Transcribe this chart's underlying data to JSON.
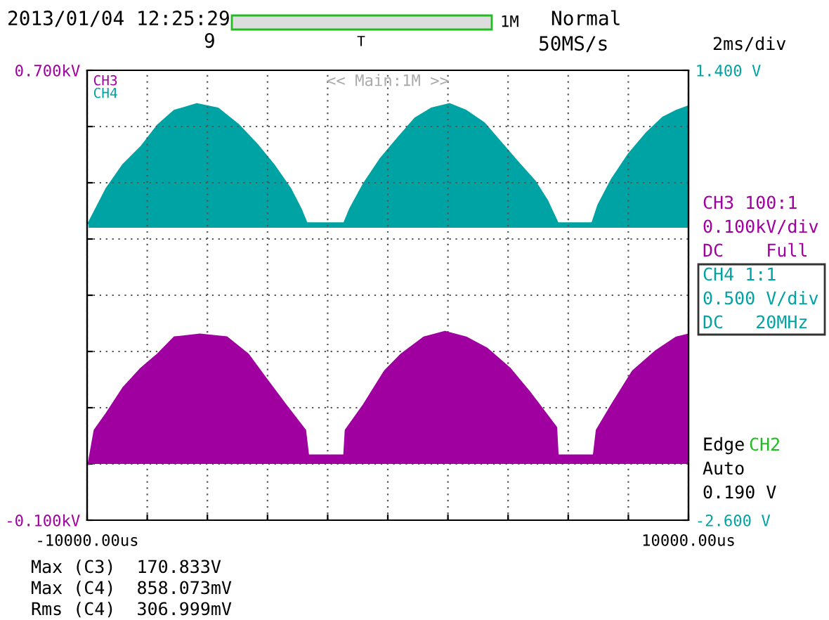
{
  "chart_data": {
    "type": "area",
    "xlim": [
      -10000,
      10000
    ],
    "xticks": [
      {
        "value": -10000,
        "label": "-10000.00us"
      },
      {
        "value": -8000,
        "label": null
      },
      {
        "value": -6000,
        "label": null
      },
      {
        "value": -4000,
        "label": null
      },
      {
        "value": -2000,
        "label": null
      },
      {
        "value": 0,
        "label": null
      },
      {
        "value": 2000,
        "label": null
      },
      {
        "value": 4000,
        "label": null
      },
      {
        "value": 6000,
        "label": null
      },
      {
        "value": 8000,
        "label": null
      },
      {
        "value": 10000,
        "label": "10000.00us"
      }
    ],
    "ylim": [
      -0.1,
      0.7
    ],
    "yticks": [
      {
        "value": -0.1,
        "label": "-0.100kV"
      },
      {
        "value": 0,
        "label": null
      },
      {
        "value": 0.1,
        "label": null
      },
      {
        "value": 0.2,
        "label": null
      },
      {
        "value": 0.3,
        "label": null
      },
      {
        "value": 0.4,
        "label": null
      },
      {
        "value": 0.5,
        "label": null
      },
      {
        "value": 0.6,
        "label": null
      },
      {
        "value": 0.7,
        "label": "0.700kV"
      }
    ],
    "y2lim": [
      -2.6,
      1.4
    ],
    "y2ticks": [
      {
        "value": -2.6,
        "label": "-2.600 V"
      },
      {
        "value": 1.4,
        "label": "1.400 V"
      }
    ],
    "grid": true,
    "legend": "top left",
    "series": [
      {
        "name": "CH4",
        "color": "#00a3a3",
        "axis": "y2",
        "x": [
          -9950,
          -9700,
          -9350,
          -8800,
          -8200,
          -7650,
          -7100,
          -6350,
          -5650,
          -4950,
          -4350,
          -3800,
          -3250,
          -2900,
          -2700,
          -1450,
          -1250,
          -800,
          -250,
          350,
          900,
          1450,
          2050,
          2600,
          3200,
          3750,
          4300,
          4900,
          5300,
          5650,
          6800,
          7000,
          7450,
          8000,
          8600,
          9150,
          9600,
          10000
        ],
        "values": [
          0.04,
          0.17,
          0.35,
          0.56,
          0.72,
          0.91,
          1.04,
          1.1,
          1.06,
          0.91,
          0.74,
          0.56,
          0.35,
          0.17,
          0.04,
          0.04,
          0.17,
          0.39,
          0.61,
          0.8,
          0.97,
          1.06,
          1.1,
          1.04,
          0.93,
          0.76,
          0.59,
          0.41,
          0.24,
          0.04,
          0.04,
          0.2,
          0.43,
          0.65,
          0.84,
          0.98,
          1.04,
          1.08
        ]
      },
      {
        "name": "CH3",
        "color": "#a000a0",
        "x": [
          -9950,
          -9750,
          -9350,
          -8800,
          -8200,
          -7650,
          -7100,
          -6250,
          -5350,
          -4650,
          -4100,
          -3400,
          -2750,
          -2650,
          -1450,
          -1400,
          -800,
          -100,
          450,
          1200,
          1900,
          2600,
          3300,
          4050,
          4750,
          5600,
          5650,
          6850,
          6950,
          7450,
          8150,
          8900,
          9600,
          10000
        ],
        "values": [
          0,
          0.06,
          0.09,
          0.135,
          0.17,
          0.195,
          0.225,
          0.23,
          0.225,
          0.195,
          0.155,
          0.105,
          0.06,
          0.015,
          0.015,
          0.06,
          0.105,
          0.165,
          0.195,
          0.225,
          0.235,
          0.225,
          0.205,
          0.17,
          0.125,
          0.065,
          0.015,
          0.015,
          0.06,
          0.105,
          0.165,
          0.2,
          0.225,
          0.23
        ]
      }
    ],
    "annotations": [
      "2013/01/04 12:25:29",
      "9",
      "T",
      "1M",
      "Normal",
      "50MS/s",
      "2ms/div",
      "<< Main:1M >>",
      "CH3 100:1",
      "0.100kV/div",
      "DC    Full",
      "CH4 1:1",
      "0.500 V/div",
      "DC   20MHz",
      "Edge",
      "CH2",
      "Auto",
      "0.190 V",
      "Max (C3)  170.833V",
      "Max (C4)  858.073mV",
      "Rms (C4)  306.999mV"
    ]
  }
}
